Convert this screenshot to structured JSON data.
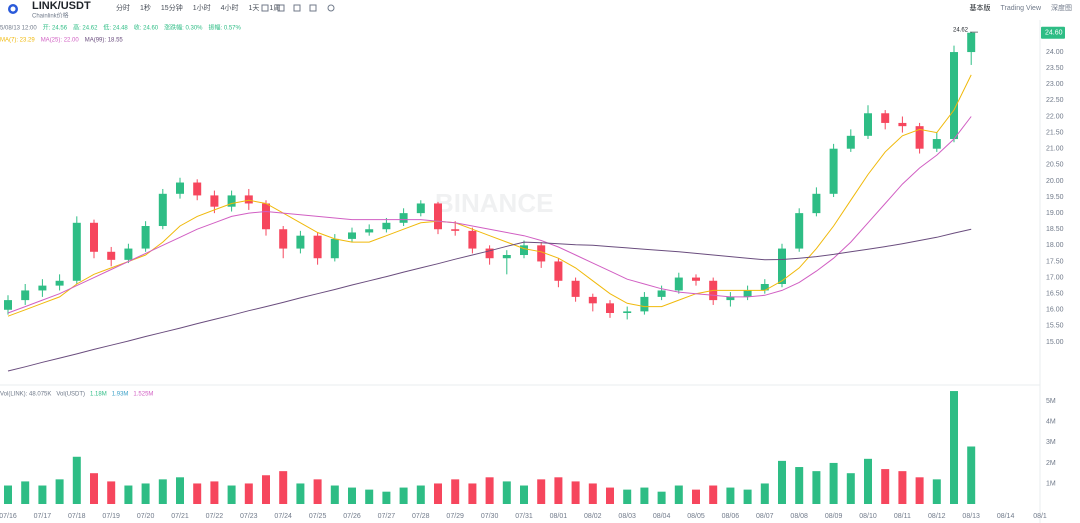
{
  "toolbar": {
    "symbol": "LINK/USDT",
    "subtitle": "Chainlink价格",
    "intervals": [
      "分时",
      "1秒",
      "15分钟",
      "1小时",
      "4小时",
      "1天",
      "1周"
    ],
    "views": [
      "基本版",
      "Trading View",
      "深度图"
    ]
  },
  "info_row": [
    "5/08/13 12:00",
    "开: 24.56",
    "高: 24.62",
    "低: 24.48",
    "收: 24.60",
    "涨跌幅: 0.30%",
    "振幅: 0.57%"
  ],
  "watermark": "BINANCE",
  "chart_data": [
    {
      "type": "candlestick",
      "categories": [
        "07/16",
        null,
        "07/17",
        null,
        "07/18",
        null,
        "07/19",
        null,
        "07/20",
        null,
        "07/21",
        null,
        "07/22",
        null,
        "07/23",
        null,
        "07/24",
        null,
        "07/25",
        null,
        "07/26",
        null,
        "07/27",
        null,
        "07/28",
        null,
        "07/29",
        null,
        "07/30",
        null,
        "07/31",
        null,
        "08/01",
        null,
        "08/02",
        null,
        "08/03",
        null,
        "08/04",
        null,
        "08/05",
        null,
        "08/06",
        null,
        "08/07",
        null,
        "08/08",
        null,
        "08/09",
        null,
        "08/10",
        null,
        "08/11",
        null,
        "08/12",
        null,
        "08/13",
        null,
        "08/14",
        null,
        "08/1"
      ],
      "open": [
        16.0,
        16.3,
        16.6,
        16.75,
        16.9,
        18.7,
        17.8,
        17.55,
        17.9,
        18.6,
        19.6,
        19.95,
        19.55,
        19.2,
        19.55,
        19.3,
        18.5,
        17.9,
        18.3,
        17.6,
        18.2,
        18.4,
        18.5,
        18.7,
        19.0,
        19.3,
        18.5,
        18.45,
        17.9,
        17.6,
        17.7,
        18.0,
        17.5,
        16.9,
        16.4,
        16.2,
        15.9,
        15.95,
        16.4,
        16.6,
        17.0,
        16.9,
        16.3,
        16.4,
        16.6,
        16.8,
        17.9,
        19.0,
        19.6,
        21.0,
        21.4,
        22.1,
        21.8,
        21.7,
        21.0,
        21.3,
        24.0,
        null,
        null,
        null,
        null
      ],
      "high": [
        16.45,
        16.8,
        16.95,
        17.1,
        18.9,
        18.8,
        17.95,
        18.05,
        18.75,
        19.75,
        20.1,
        20.05,
        19.7,
        19.7,
        19.75,
        19.4,
        18.6,
        18.45,
        18.4,
        18.35,
        18.55,
        18.65,
        18.85,
        19.15,
        19.4,
        19.35,
        18.75,
        18.55,
        18.0,
        17.85,
        18.15,
        18.1,
        17.6,
        17.0,
        16.5,
        16.3,
        16.1,
        16.55,
        16.75,
        17.15,
        17.1,
        17.0,
        16.55,
        16.75,
        16.95,
        18.05,
        19.15,
        19.8,
        21.15,
        21.6,
        22.35,
        22.2,
        22.0,
        21.8,
        21.5,
        24.2,
        24.62,
        null,
        null,
        null,
        null
      ],
      "low": [
        15.85,
        16.15,
        16.4,
        16.6,
        16.8,
        17.6,
        17.35,
        17.45,
        17.8,
        18.5,
        19.45,
        19.4,
        19.0,
        19.05,
        19.1,
        18.3,
        17.6,
        17.75,
        17.4,
        17.5,
        18.1,
        18.3,
        18.4,
        18.6,
        18.9,
        18.35,
        18.3,
        17.75,
        17.4,
        17.1,
        17.6,
        17.3,
        16.7,
        16.25,
        15.95,
        15.75,
        15.7,
        15.85,
        16.3,
        16.5,
        16.75,
        16.15,
        16.1,
        16.3,
        16.5,
        16.7,
        17.8,
        18.9,
        19.5,
        20.9,
        21.3,
        21.6,
        21.5,
        20.85,
        20.9,
        21.2,
        23.6,
        null,
        null,
        null,
        null
      ],
      "close": [
        16.3,
        16.6,
        16.75,
        16.9,
        18.7,
        17.8,
        17.55,
        17.9,
        18.6,
        19.6,
        19.95,
        19.55,
        19.2,
        19.55,
        19.3,
        18.5,
        17.9,
        18.3,
        17.6,
        18.2,
        18.4,
        18.5,
        18.7,
        19.0,
        19.3,
        18.5,
        18.45,
        17.9,
        17.6,
        17.7,
        18.0,
        17.5,
        16.9,
        16.4,
        16.2,
        15.9,
        15.95,
        16.4,
        16.6,
        17.0,
        16.9,
        16.3,
        16.4,
        16.6,
        16.8,
        17.9,
        19.0,
        19.6,
        21.0,
        21.4,
        22.1,
        21.8,
        21.7,
        21.0,
        21.3,
        24.0,
        24.6,
        null,
        null,
        null,
        null
      ],
      "up_color": "#2ebd85",
      "down_color": "#f6465d",
      "series": [
        {
          "name": "MA(7): 23.29",
          "color": "#f0b90b",
          "values": [
            15.8,
            16.0,
            16.2,
            16.4,
            16.8,
            17.1,
            17.3,
            17.5,
            17.7,
            18.1,
            18.6,
            18.9,
            19.1,
            19.3,
            19.4,
            19.3,
            19.0,
            18.7,
            18.4,
            18.2,
            18.1,
            18.1,
            18.3,
            18.5,
            18.7,
            18.75,
            18.7,
            18.5,
            18.3,
            18.1,
            17.9,
            17.8,
            17.6,
            17.3,
            16.9,
            16.5,
            16.2,
            16.1,
            16.1,
            16.3,
            16.5,
            16.6,
            16.6,
            16.6,
            16.6,
            16.9,
            17.3,
            17.9,
            18.6,
            19.4,
            20.2,
            20.9,
            21.4,
            21.6,
            21.5,
            22.2,
            23.29,
            null,
            null,
            null,
            null
          ]
        },
        {
          "name": "MA(25): 22.00",
          "color": "#d15fc3",
          "values": [
            15.9,
            16.1,
            16.3,
            16.5,
            16.75,
            17.0,
            17.25,
            17.5,
            17.75,
            18.0,
            18.25,
            18.5,
            18.7,
            18.9,
            19.0,
            19.05,
            19.0,
            18.95,
            18.9,
            18.85,
            18.8,
            18.8,
            18.8,
            18.8,
            18.8,
            18.75,
            18.7,
            18.6,
            18.5,
            18.4,
            18.3,
            18.15,
            17.95,
            17.7,
            17.45,
            17.2,
            16.95,
            16.8,
            16.65,
            16.55,
            16.5,
            16.45,
            16.4,
            16.4,
            16.45,
            16.6,
            16.85,
            17.2,
            17.6,
            18.1,
            18.7,
            19.3,
            19.9,
            20.4,
            20.8,
            21.3,
            22.0,
            null,
            null,
            null,
            null
          ]
        },
        {
          "name": "MA(99): 18.55",
          "color": "#6a4d7e",
          "values": [
            14.1,
            14.23,
            14.37,
            14.5,
            14.63,
            14.77,
            14.9,
            15.03,
            15.17,
            15.3,
            15.43,
            15.57,
            15.7,
            15.83,
            15.97,
            16.1,
            16.23,
            16.37,
            16.5,
            16.63,
            16.77,
            16.9,
            17.03,
            17.17,
            17.3,
            17.43,
            17.57,
            17.7,
            17.83,
            17.97,
            18.1,
            18.08,
            18.05,
            18.02,
            18.0,
            17.96,
            17.92,
            17.88,
            17.84,
            17.8,
            17.75,
            17.7,
            17.65,
            17.6,
            17.55,
            17.56,
            17.6,
            17.65,
            17.72,
            17.8,
            17.88,
            17.96,
            18.05,
            18.15,
            18.25,
            18.38,
            18.5,
            null,
            null,
            null,
            null
          ]
        }
      ],
      "ylim": [
        13.82,
        24.84
      ],
      "yticks": [
        {
          "value": 15,
          "label": "15.00"
        },
        {
          "value": 15.5,
          "label": "15.50"
        },
        {
          "value": 16,
          "label": "16.00"
        },
        {
          "value": 16.5,
          "label": "16.50"
        },
        {
          "value": 17,
          "label": "17.00"
        },
        {
          "value": 17.5,
          "label": "17.50"
        },
        {
          "value": 18,
          "label": "18.00"
        },
        {
          "value": 18.5,
          "label": "18.50"
        },
        {
          "value": 19,
          "label": "19.00"
        },
        {
          "value": 19.5,
          "label": "19.50"
        },
        {
          "value": 20,
          "label": "20.00"
        },
        {
          "value": 20.5,
          "label": "20.50"
        },
        {
          "value": 21,
          "label": "21.00"
        },
        {
          "value": 21.5,
          "label": "21.50"
        },
        {
          "value": 22,
          "label": "22.00"
        },
        {
          "value": 22.5,
          "label": "22.50"
        },
        {
          "value": 23,
          "label": "23.00"
        },
        {
          "value": 23.5,
          "label": "23.50"
        },
        {
          "value": 24,
          "label": "24.00"
        }
      ],
      "last_price": {
        "value": 24.6,
        "label": "24.60"
      },
      "high_marker": {
        "value": 24.62,
        "label": "24.62"
      },
      "grid": false
    },
    {
      "type": "bar",
      "legend": [
        "Vol(LINK): 48.075K",
        "Vol(USDT)",
        "1.18M",
        "1.93M",
        "1.525M"
      ],
      "values": [
        900000,
        1100000,
        900000,
        1200000,
        2300000,
        1500000,
        1100000,
        900000,
        1000000,
        1200000,
        1300000,
        1000000,
        1100000,
        900000,
        1000000,
        1400000,
        1600000,
        1000000,
        1200000,
        900000,
        800000,
        700000,
        600000,
        800000,
        900000,
        1000000,
        1200000,
        1000000,
        1300000,
        1100000,
        900000,
        1200000,
        1300000,
        1100000,
        1000000,
        800000,
        700000,
        800000,
        600000,
        900000,
        700000,
        900000,
        800000,
        700000,
        1000000,
        2100000,
        1800000,
        1600000,
        2000000,
        1500000,
        2200000,
        1700000,
        1600000,
        1300000,
        1200000,
        5500000,
        2800000,
        null,
        null,
        null,
        null
      ],
      "ylim": [
        0,
        5600000
      ],
      "yticks": [
        {
          "value": 1000000,
          "label": "1M"
        },
        {
          "value": 2000000,
          "label": "2M"
        },
        {
          "value": 3000000,
          "label": "3M"
        },
        {
          "value": 4000000,
          "label": "4M"
        },
        {
          "value": 5000000,
          "label": "5M"
        }
      ]
    }
  ]
}
